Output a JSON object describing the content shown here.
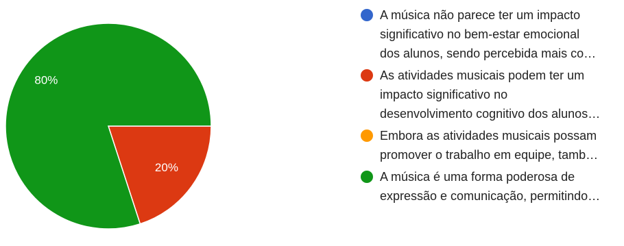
{
  "chart_data": {
    "type": "pie",
    "slices": [
      {
        "label": "A música não parece ter um impacto\nsignificativo no bem-estar emocional\ndos alunos, sendo percebida mais co…",
        "value": 0,
        "percent_label": "",
        "color": "#3366cc"
      },
      {
        "label": "As atividades musicais podem ter um\nimpacto significativo no\ndesenvolvimento cognitivo dos alunos…",
        "value": 20,
        "percent_label": "20%",
        "color": "#dc3912"
      },
      {
        "label": "Embora as atividades musicais possam\npromover o trabalho em equipe, tamb…",
        "value": 0,
        "percent_label": "",
        "color": "#ff9900"
      },
      {
        "label": "A música é uma forma poderosa de\nexpressão e comunicação, permitindo…",
        "value": 80,
        "percent_label": "80%",
        "color": "#109618"
      }
    ],
    "legend_position": "right"
  }
}
